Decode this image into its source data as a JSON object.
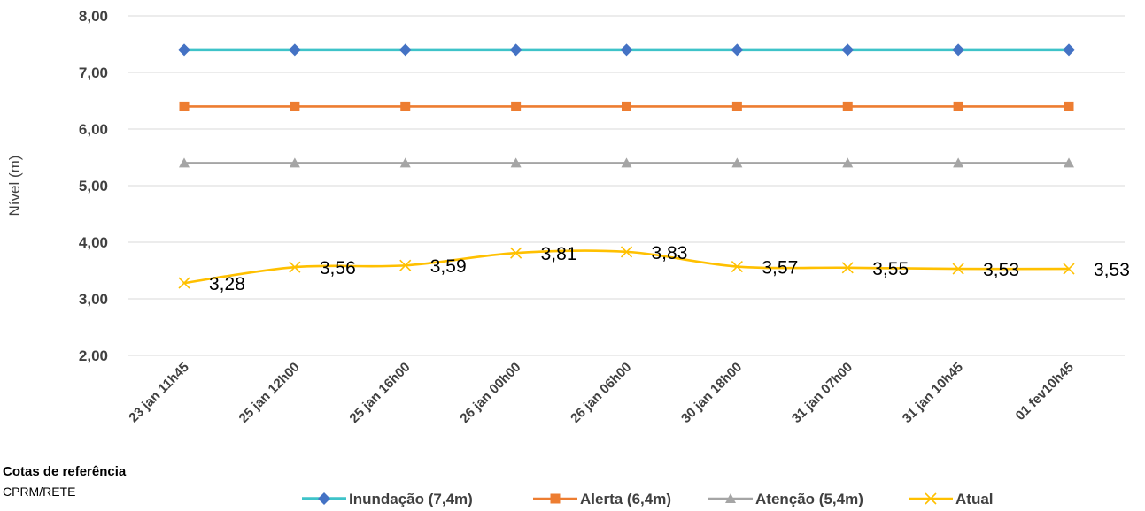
{
  "chart_data": {
    "type": "line",
    "ylabel": "Nível (m)",
    "ylim": [
      2,
      8
    ],
    "y_ticks": [
      "8,00",
      "7,00",
      "6,00",
      "5,00",
      "4,00",
      "3,00",
      "2,00"
    ],
    "y_tick_values": [
      8,
      7,
      6,
      5,
      4,
      3,
      2
    ],
    "categories": [
      "23 jan 11h45",
      "25 jan 12h00",
      "25 jan 16h00",
      "26 jan 00h00",
      "26 jan 06h00",
      "30 jan 18h00",
      "31 jan 07h00",
      "31 jan 10h45",
      "01 fev10h45"
    ],
    "grid": true,
    "legend_position": "bottom",
    "series": [
      {
        "name": "Inundação (7,4m)",
        "marker": "diamond",
        "color": "#3ec3c9",
        "marker_color": "#4472c4",
        "values": [
          7.4,
          7.4,
          7.4,
          7.4,
          7.4,
          7.4,
          7.4,
          7.4,
          7.4
        ]
      },
      {
        "name": "Alerta (6,4m)",
        "marker": "square",
        "color": "#ed7d31",
        "marker_color": "#ed7d31",
        "values": [
          6.4,
          6.4,
          6.4,
          6.4,
          6.4,
          6.4,
          6.4,
          6.4,
          6.4
        ]
      },
      {
        "name": "Atenção (5,4m)",
        "marker": "triangle",
        "color": "#a5a5a5",
        "marker_color": "#a5a5a5",
        "values": [
          5.4,
          5.4,
          5.4,
          5.4,
          5.4,
          5.4,
          5.4,
          5.4,
          5.4
        ]
      },
      {
        "name": "Atual",
        "marker": "x",
        "color": "#ffc000",
        "marker_color": "#ffc000",
        "values": [
          3.28,
          3.56,
          3.59,
          3.81,
          3.83,
          3.57,
          3.55,
          3.53,
          3.53
        ],
        "data_labels": [
          "3,28",
          "3,56",
          "3,59",
          "3,81",
          "3,83",
          "3,57",
          "3,55",
          "3,53",
          "3,53"
        ]
      }
    ]
  },
  "notes": {
    "title": "Cotas de referência",
    "source": "CPRM/RETE"
  }
}
